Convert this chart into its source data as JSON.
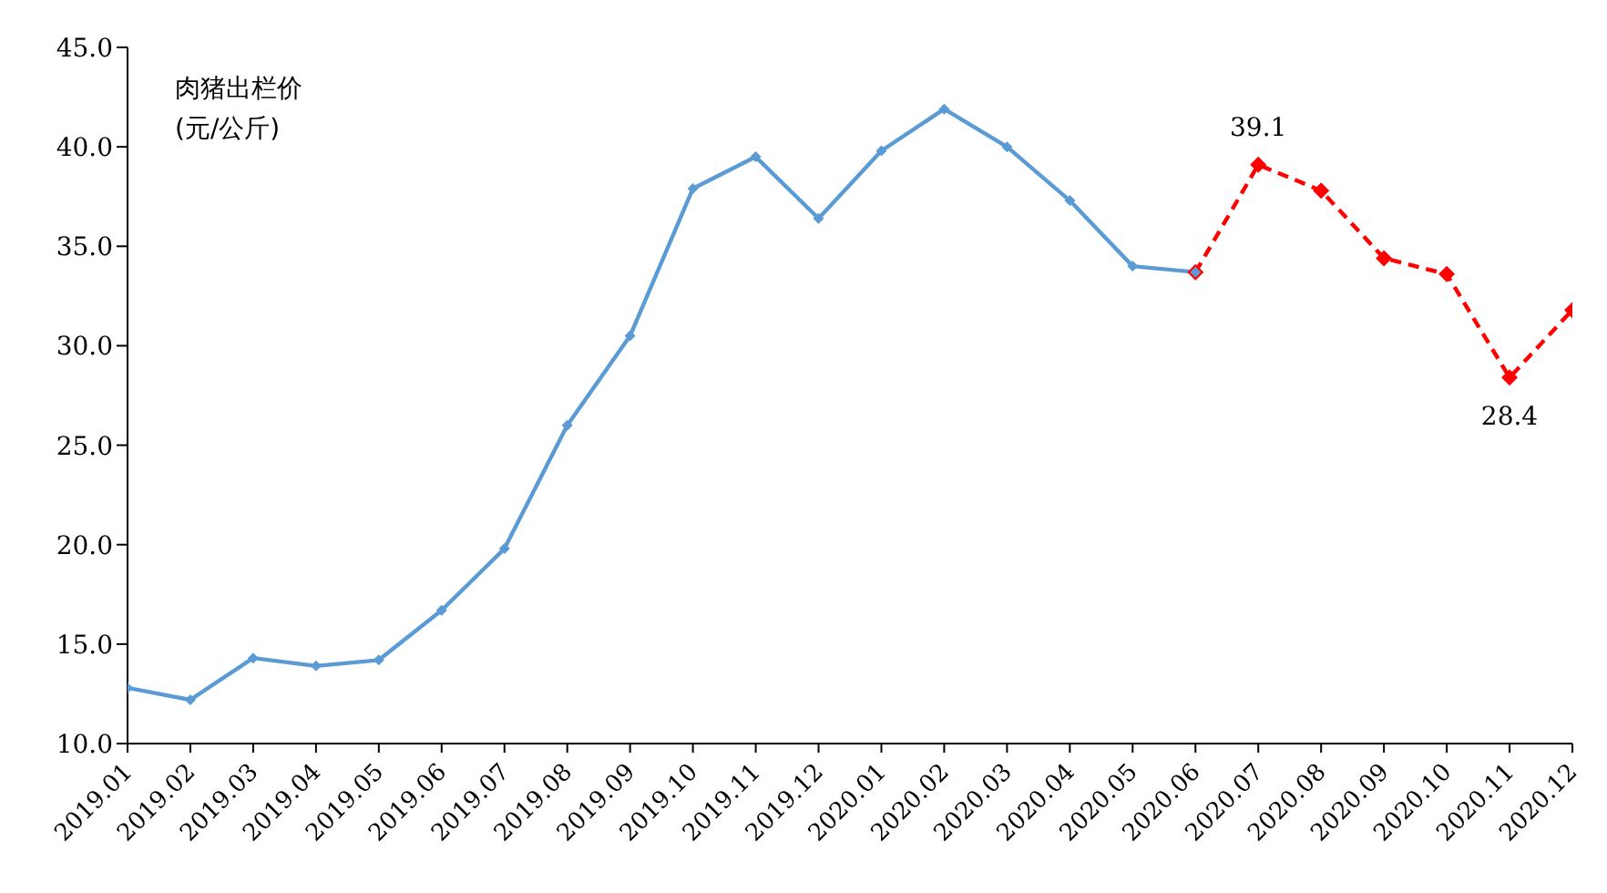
{
  "chart_data": {
    "type": "line",
    "ylabel": "肉猪出栏价\n(元/公斤)",
    "categories": [
      "2019.01",
      "2019.02",
      "2019.03",
      "2019.04",
      "2019.05",
      "2019.06",
      "2019.07",
      "2019.08",
      "2019.09",
      "2019.10",
      "2019.11",
      "2019.12",
      "2020.01",
      "2020.02",
      "2020.03",
      "2020.04",
      "2020.05",
      "2020.06",
      "2020.07",
      "2020.08",
      "2020.09",
      "2020.10",
      "2020.11",
      "2020.12"
    ],
    "series": [
      {
        "color": "#5b9bd5",
        "line_style": "solid",
        "values": [
          12.8,
          12.2,
          14.3,
          13.9,
          14.2,
          16.7,
          19.8,
          26.0,
          30.5,
          37.9,
          39.5,
          36.4,
          39.8,
          41.9,
          40.0,
          37.3,
          34.0,
          33.7,
          null,
          null,
          null,
          null,
          null,
          null
        ]
      },
      {
        "color": "#ff0000",
        "line_style": "dashed",
        "values": [
          null,
          null,
          null,
          null,
          null,
          null,
          null,
          null,
          null,
          null,
          null,
          null,
          null,
          null,
          null,
          null,
          null,
          33.7,
          39.1,
          37.8,
          34.4,
          33.6,
          28.4,
          31.8
        ],
        "value_labels": [
          null,
          null,
          null,
          null,
          null,
          null,
          null,
          null,
          null,
          null,
          null,
          null,
          null,
          null,
          null,
          null,
          null,
          null,
          "39.1",
          null,
          null,
          null,
          "28.4",
          null
        ]
      }
    ],
    "ylim": [
      10,
      45
    ],
    "yticks": [
      {
        "value": 10,
        "label": "10.0"
      },
      {
        "value": 15,
        "label": "15.0"
      },
      {
        "value": 20,
        "label": "20.0"
      },
      {
        "value": 25,
        "label": "25.0"
      },
      {
        "value": 30,
        "label": "30.0"
      },
      {
        "value": 35,
        "label": "35.0"
      },
      {
        "value": 40,
        "label": "40.0"
      },
      {
        "value": 45,
        "label": "45.0"
      }
    ],
    "grid": false,
    "legend": false,
    "marker": "diamond"
  }
}
